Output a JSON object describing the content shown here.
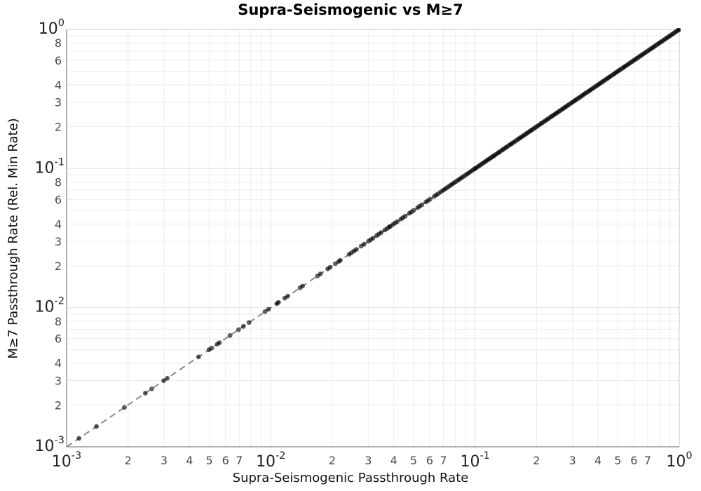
{
  "chart_data": {
    "type": "scatter",
    "title": "Supra-Seismogenic vs M≥7",
    "xlabel": "Supra-Seismogenic Passthrough Rate",
    "ylabel": "M≥7 Passthrough Rate (Rel. Min Rate)",
    "x_scale": "log",
    "y_scale": "log",
    "xlim": [
      0.001,
      1.0
    ],
    "ylim": [
      0.001,
      1.0
    ],
    "grid": true,
    "legend": false,
    "x_major_tick_exponents": [
      -3,
      -2,
      -1,
      0
    ],
    "y_major_tick_exponents": [
      0,
      -1,
      -2,
      -3
    ],
    "x_minor_tick_digits": [
      2,
      3,
      4,
      5,
      6,
      7
    ],
    "y_minor_tick_digits": [
      2,
      3,
      4,
      6,
      8
    ],
    "minor_tick_decades": [
      -3,
      -2,
      -1
    ],
    "reference_line": {
      "relation": "y = x",
      "from": [
        0.001,
        0.001
      ],
      "to": [
        1.0,
        1.0
      ],
      "style": "dashed"
    },
    "points_relation": "all points lie on the 1:1 line (y = x)",
    "marker": {
      "color": "#000000",
      "opacity": 0.62,
      "radius_px": 3.4
    },
    "x": [
      0.00115,
      0.0014,
      0.00192,
      0.00243,
      0.00261,
      0.00299,
      0.00311,
      0.00443,
      0.00498,
      0.00513,
      0.00547,
      0.00561,
      0.00631,
      0.00695,
      0.00734,
      0.00782,
      0.00937,
      0.00974,
      0.0107,
      0.0109,
      0.0117,
      0.0121,
      0.0139,
      0.0143,
      0.0169,
      0.0175,
      0.019,
      0.0195,
      0.0207,
      0.0215,
      0.0219,
      0.0242,
      0.0248,
      0.0255,
      0.0262,
      0.0277,
      0.0286,
      0.0301,
      0.0308,
      0.0316,
      0.033,
      0.0338,
      0.0347,
      0.0362,
      0.0371,
      0.038,
      0.0385,
      0.0397,
      0.0406,
      0.0416,
      0.0434,
      0.0444,
      0.0455,
      0.0477,
      0.0488,
      0.05,
      0.0524,
      0.0536,
      0.0549,
      0.0575,
      0.0589,
      0.0603,
      0.0632,
      0.0647,
      0.0662,
      0.068,
      0.0697,
      0.0712,
      0.0727,
      0.0742,
      0.0758,
      0.0774,
      0.079,
      0.0807,
      0.0824,
      0.0841,
      0.0859,
      0.0877,
      0.0896,
      0.0915,
      0.0934,
      0.0954,
      0.0974,
      0.0995,
      0.1,
      0.102,
      0.104,
      0.106,
      0.108,
      0.11,
      0.112,
      0.114,
      0.116,
      0.118,
      0.12,
      0.122,
      0.124,
      0.126,
      0.129,
      0.131,
      0.133,
      0.136,
      0.138,
      0.141,
      0.143,
      0.146,
      0.149,
      0.151,
      0.154,
      0.157,
      0.16,
      0.163,
      0.166,
      0.169,
      0.172,
      0.175,
      0.178,
      0.181,
      0.185,
      0.188,
      0.191,
      0.195,
      0.198,
      0.202,
      0.206,
      0.21,
      0.213,
      0.217,
      0.221,
      0.225,
      0.229,
      0.234,
      0.238,
      0.242,
      0.247,
      0.251,
      0.256,
      0.26,
      0.265,
      0.27,
      0.275,
      0.28,
      0.285,
      0.29,
      0.296,
      0.301,
      0.307,
      0.312,
      0.318,
      0.324,
      0.33,
      0.336,
      0.342,
      0.348,
      0.354,
      0.361,
      0.367,
      0.374,
      0.381,
      0.388,
      0.395,
      0.402,
      0.409,
      0.417,
      0.424,
      0.432,
      0.44,
      0.448,
      0.456,
      0.464,
      0.473,
      0.481,
      0.49,
      0.499,
      0.508,
      0.517,
      0.527,
      0.536,
      0.546,
      0.556,
      0.566,
      0.576,
      0.587,
      0.597,
      0.608,
      0.619,
      0.63,
      0.642,
      0.653,
      0.665,
      0.677,
      0.69,
      0.702,
      0.715,
      0.728,
      0.741,
      0.754,
      0.768,
      0.782,
      0.796,
      0.811,
      0.825,
      0.84,
      0.856,
      0.871,
      0.887,
      0.903,
      0.919,
      0.936,
      0.953,
      0.97,
      0.988,
      1.0
    ],
    "colors": {
      "background": "#ffffff",
      "minor_grid": "#ececec",
      "major_grid": "#e2e2e2",
      "border": "#c9c9c9",
      "axis_line": "#9a9a9a",
      "ref_line": "#898989",
      "marker": "#000000",
      "tick_major": "#222222",
      "tick_minor": "#4a4a4a"
    }
  }
}
